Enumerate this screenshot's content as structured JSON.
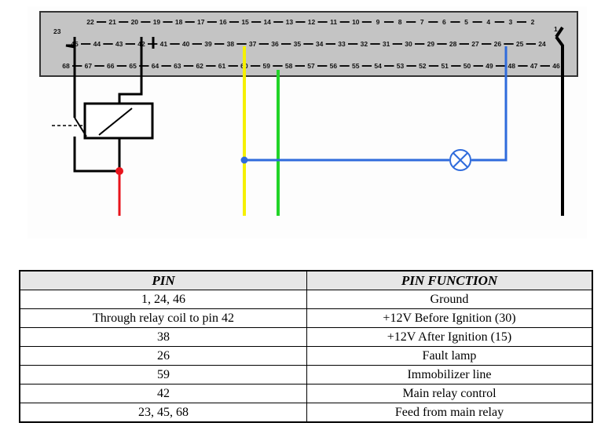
{
  "connector": {
    "row1": [
      "22",
      "21",
      "20",
      "19",
      "18",
      "17",
      "16",
      "15",
      "14",
      "13",
      "12",
      "11",
      "10",
      "9",
      "8",
      "7",
      "6",
      "5",
      "4",
      "3",
      "2"
    ],
    "row2": [
      "45",
      "44",
      "43",
      "42",
      "41",
      "40",
      "39",
      "38",
      "37",
      "36",
      "35",
      "34",
      "33",
      "32",
      "31",
      "30",
      "29",
      "28",
      "27",
      "26",
      "25",
      "24"
    ],
    "row3": [
      "68",
      "67",
      "66",
      "65",
      "64",
      "63",
      "62",
      "61",
      "60",
      "59",
      "58",
      "57",
      "56",
      "55",
      "54",
      "53",
      "52",
      "51",
      "50",
      "49",
      "48",
      "47",
      "46"
    ],
    "label_23": "23",
    "label_1": "1"
  },
  "wire_colors": {
    "red": "#e8141c",
    "yellow": "#f5f000",
    "green": "#22d428",
    "blue": "#2f6bdc",
    "black": "#000000"
  },
  "table": {
    "headers": [
      "PIN",
      "PIN FUNCTION"
    ],
    "rows": [
      {
        "pin": "1, 24, 46",
        "function": "Ground"
      },
      {
        "pin": "Through relay coil to pin 42",
        "function": "+12V Before Ignition (30)"
      },
      {
        "pin": "38",
        "function": "+12V After Ignition (15)"
      },
      {
        "pin": "26",
        "function": "Fault lamp"
      },
      {
        "pin": "59",
        "function": "Immobilizer line"
      },
      {
        "pin": "42",
        "function": "Main relay control"
      },
      {
        "pin": "23, 45, 68",
        "function": "Feed from main relay"
      }
    ]
  }
}
